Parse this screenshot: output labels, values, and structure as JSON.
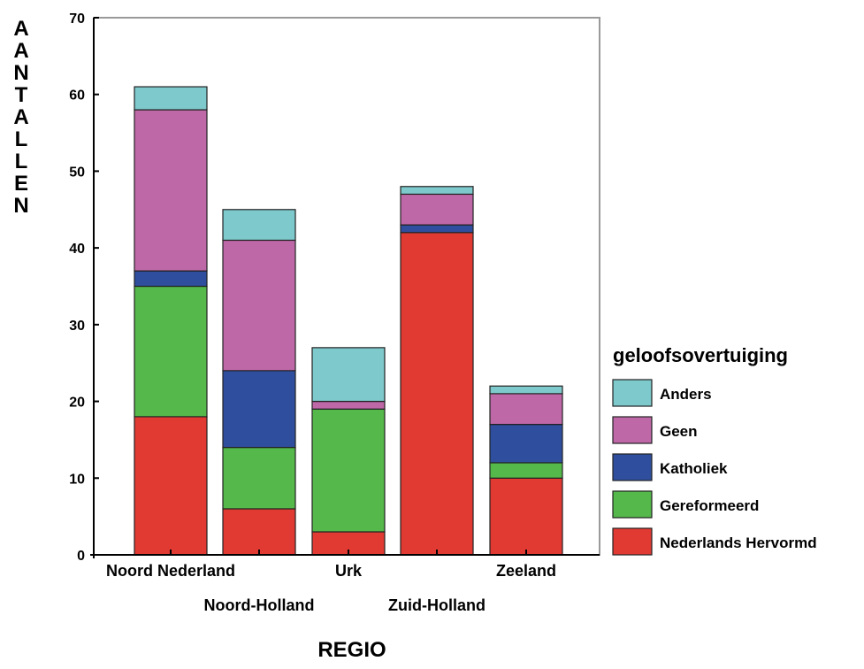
{
  "chart_data": {
    "type": "bar",
    "stacked": true,
    "xlabel": "REGIO",
    "ylabel": "AANTALLEN",
    "ylim": [
      0,
      70
    ],
    "yticks": [
      0,
      10,
      20,
      30,
      40,
      50,
      60,
      70
    ],
    "categories": [
      "Noord Nederland",
      "Noord-Holland",
      "Urk",
      "Zuid-Holland",
      "Zeeland"
    ],
    "legend": {
      "title": "geloofsovertuiging",
      "position": "right"
    },
    "series": [
      {
        "name": "Nederlands Hervormd",
        "color": "#e03a33",
        "values": [
          18,
          6,
          3,
          42,
          10
        ]
      },
      {
        "name": "Gereformeerd",
        "color": "#54b84a",
        "values": [
          17,
          8,
          16,
          0,
          2
        ]
      },
      {
        "name": "Katholiek",
        "color": "#2f4f9e",
        "values": [
          2,
          10,
          0,
          1,
          5
        ]
      },
      {
        "name": "Geen",
        "color": "#bf68a8",
        "values": [
          21,
          17,
          1,
          4,
          4
        ]
      },
      {
        "name": "Anders",
        "color": "#7ec9cb",
        "values": [
          3,
          4,
          7,
          1,
          1
        ]
      }
    ]
  }
}
